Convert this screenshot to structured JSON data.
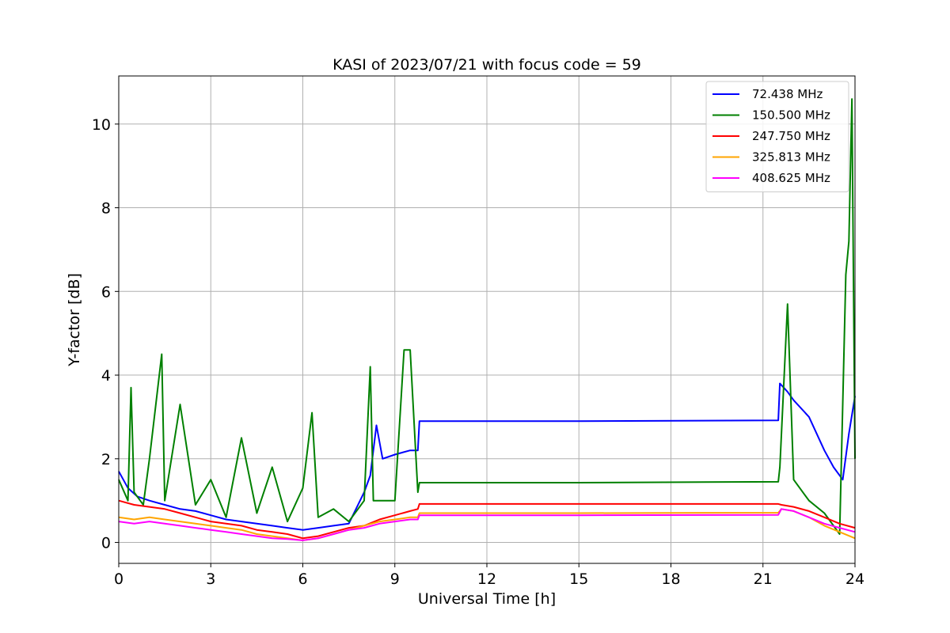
{
  "chart_data": {
    "type": "line",
    "title": "KASI of 2023/07/21 with focus code = 59",
    "xlabel": "Universal Time [h]",
    "ylabel": "Y-factor [dB]",
    "xlim": [
      0,
      24
    ],
    "ylim": [
      -0.5,
      11.15
    ],
    "xticks": [
      0,
      3,
      6,
      9,
      12,
      15,
      18,
      21,
      24
    ],
    "yticks": [
      0,
      2,
      4,
      6,
      8,
      10
    ],
    "grid": true,
    "legend_position": "top-right",
    "series": [
      {
        "name": "72.438 MHz",
        "color": "#0000ff",
        "x": [
          0,
          0.3,
          0.6,
          1,
          1.5,
          2,
          2.5,
          3,
          3.5,
          4,
          4.5,
          5,
          5.5,
          6,
          6.5,
          7,
          7.5,
          8,
          8.2,
          8.4,
          8.6,
          9,
          9.5,
          9.75,
          9.8,
          15,
          21.5,
          21.55,
          21.8,
          22,
          22.5,
          23,
          23.3,
          23.6,
          23.8,
          24
        ],
        "y": [
          1.7,
          1.3,
          1.1,
          1.0,
          0.9,
          0.8,
          0.75,
          0.65,
          0.55,
          0.5,
          0.45,
          0.4,
          0.35,
          0.3,
          0.35,
          0.4,
          0.45,
          1.2,
          1.6,
          2.8,
          2.0,
          2.1,
          2.2,
          2.2,
          2.9,
          2.9,
          2.92,
          3.8,
          3.6,
          3.4,
          3.0,
          2.2,
          1.8,
          1.5,
          2.6,
          3.5
        ]
      },
      {
        "name": "150.500 MHz",
        "color": "#008000",
        "x": [
          0,
          0.3,
          0.4,
          0.5,
          0.8,
          1,
          1.4,
          1.5,
          2,
          2.5,
          3,
          3.5,
          4,
          4.5,
          5,
          5.5,
          6,
          6.3,
          6.5,
          7,
          7.5,
          8,
          8.2,
          8.3,
          8.5,
          9,
          9.3,
          9.5,
          9.75,
          9.8,
          15,
          21.5,
          21.55,
          21.8,
          22,
          22.5,
          23,
          23.5,
          23.7,
          23.8,
          23.9,
          24
        ],
        "y": [
          1.5,
          1.0,
          3.7,
          1.2,
          0.9,
          2.0,
          4.5,
          1.0,
          3.3,
          0.9,
          1.5,
          0.6,
          2.5,
          0.7,
          1.8,
          0.5,
          1.3,
          3.1,
          0.6,
          0.8,
          0.5,
          1.0,
          4.2,
          1.0,
          1.0,
          1.0,
          4.6,
          4.6,
          1.2,
          1.43,
          1.43,
          1.45,
          1.8,
          5.7,
          1.5,
          1.0,
          0.7,
          0.2,
          6.4,
          7.2,
          10.6,
          2.0
        ]
      },
      {
        "name": "247.750 MHz",
        "color": "#ff0000",
        "x": [
          0,
          0.5,
          1,
          1.5,
          2,
          2.5,
          3,
          3.5,
          4,
          4.5,
          5,
          5.5,
          6,
          6.5,
          7,
          7.5,
          8,
          8.5,
          9,
          9.5,
          9.75,
          9.8,
          15,
          21.5,
          21.6,
          22,
          22.5,
          23,
          23.5,
          24
        ],
        "y": [
          1.0,
          0.9,
          0.85,
          0.8,
          0.7,
          0.6,
          0.5,
          0.45,
          0.4,
          0.3,
          0.25,
          0.2,
          0.1,
          0.15,
          0.25,
          0.35,
          0.4,
          0.55,
          0.65,
          0.75,
          0.8,
          0.92,
          0.92,
          0.92,
          0.9,
          0.85,
          0.75,
          0.6,
          0.45,
          0.35
        ]
      },
      {
        "name": "325.813 MHz",
        "color": "#ffa500",
        "x": [
          0,
          0.5,
          1,
          1.5,
          2,
          2.5,
          3,
          3.5,
          4,
          4.5,
          5,
          5.5,
          6,
          6.5,
          7,
          7.5,
          8,
          8.5,
          9,
          9.5,
          9.75,
          9.8,
          15,
          21.5,
          21.6,
          22,
          22.5,
          23,
          23.5,
          24
        ],
        "y": [
          0.6,
          0.55,
          0.6,
          0.55,
          0.5,
          0.45,
          0.4,
          0.35,
          0.3,
          0.2,
          0.15,
          0.1,
          0.05,
          0.1,
          0.2,
          0.3,
          0.4,
          0.5,
          0.55,
          0.6,
          0.6,
          0.7,
          0.7,
          0.71,
          0.8,
          0.75,
          0.6,
          0.4,
          0.25,
          0.1
        ]
      },
      {
        "name": "408.625 MHz",
        "color": "#ff00ff",
        "x": [
          0,
          0.5,
          1,
          1.5,
          2,
          2.5,
          3,
          3.5,
          4,
          4.5,
          5,
          5.5,
          6,
          6.5,
          7,
          7.5,
          8,
          8.5,
          9,
          9.5,
          9.75,
          9.8,
          15,
          21.5,
          21.6,
          22,
          22.5,
          23,
          23.5,
          24
        ],
        "y": [
          0.5,
          0.45,
          0.5,
          0.45,
          0.4,
          0.35,
          0.3,
          0.25,
          0.2,
          0.15,
          0.1,
          0.08,
          0.05,
          0.1,
          0.2,
          0.3,
          0.35,
          0.45,
          0.5,
          0.55,
          0.55,
          0.65,
          0.65,
          0.66,
          0.8,
          0.75,
          0.6,
          0.45,
          0.35,
          0.25
        ]
      }
    ]
  }
}
